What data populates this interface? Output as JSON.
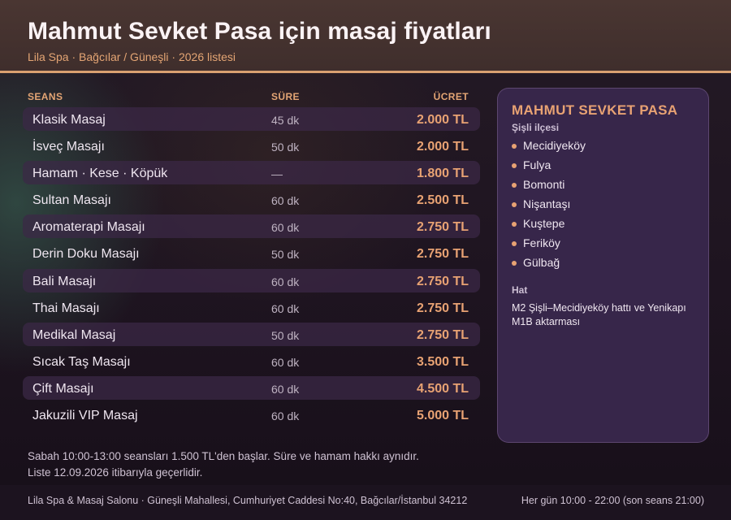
{
  "header": {
    "title": "Mahmut Sevket Pasa için masaj fiyatları",
    "subtitle": "Lila Spa · Bağcılar / Güneşli · 2026 listesi"
  },
  "table": {
    "columns": {
      "name": "SEANS",
      "duration": "SÜRE",
      "price": "ÜCRET"
    },
    "rows": [
      {
        "name": "Klasik Masaj",
        "duration": "45 dk",
        "price": "2.000 TL"
      },
      {
        "name": "İsveç Masajı",
        "duration": "50 dk",
        "price": "2.000 TL"
      },
      {
        "name": "Hamam · Kese · Köpük",
        "duration": "—",
        "price": "1.800 TL"
      },
      {
        "name": "Sultan Masajı",
        "duration": "60 dk",
        "price": "2.500 TL"
      },
      {
        "name": "Aromaterapi Masajı",
        "duration": "60 dk",
        "price": "2.750 TL"
      },
      {
        "name": "Derin Doku Masajı",
        "duration": "50 dk",
        "price": "2.750 TL"
      },
      {
        "name": "Bali Masajı",
        "duration": "60 dk",
        "price": "2.750 TL"
      },
      {
        "name": "Thai Masajı",
        "duration": "60 dk",
        "price": "2.750 TL"
      },
      {
        "name": "Medikal Masaj",
        "duration": "50 dk",
        "price": "2.750 TL"
      },
      {
        "name": "Sıcak Taş Masajı",
        "duration": "60 dk",
        "price": "3.500 TL"
      },
      {
        "name": "Çift Masajı",
        "duration": "60 dk",
        "price": "4.500 TL"
      },
      {
        "name": "Jakuzili VIP Masaj",
        "duration": "60 dk",
        "price": "5.000 TL"
      }
    ]
  },
  "panel": {
    "title": "MAHMUT SEVKET PASA",
    "subtitle": "Şişli ilçesi",
    "districts": [
      "Mecidiyeköy",
      "Fulya",
      "Bomonti",
      "Nişantaşı",
      "Kuştepe",
      "Feriköy",
      "Gülbağ"
    ],
    "transit_label": "Hat",
    "transit_text": "M2 Şişli–Mecidiyeköy hattı ve Yenikapı M1B aktarması"
  },
  "notes": {
    "line1": "Sabah 10:00-13:00 seansları 1.500 TL'den başlar. Süre ve hamam hakkı aynıdır.",
    "line2": "Liste 12.09.2026 itibarıyla geçerlidir."
  },
  "footer": {
    "address": "Lila Spa & Masaj Salonu · Güneşli Mahallesi, Cumhuriyet Caddesi No:40, Bağcılar/İstanbul 34212",
    "hours": "Her gün 10:00 - 22:00 (son seans 21:00)"
  },
  "colors": {
    "accent": "#e8a273",
    "header_bg": "#4a3632",
    "panel_bg": "#3a284e"
  }
}
